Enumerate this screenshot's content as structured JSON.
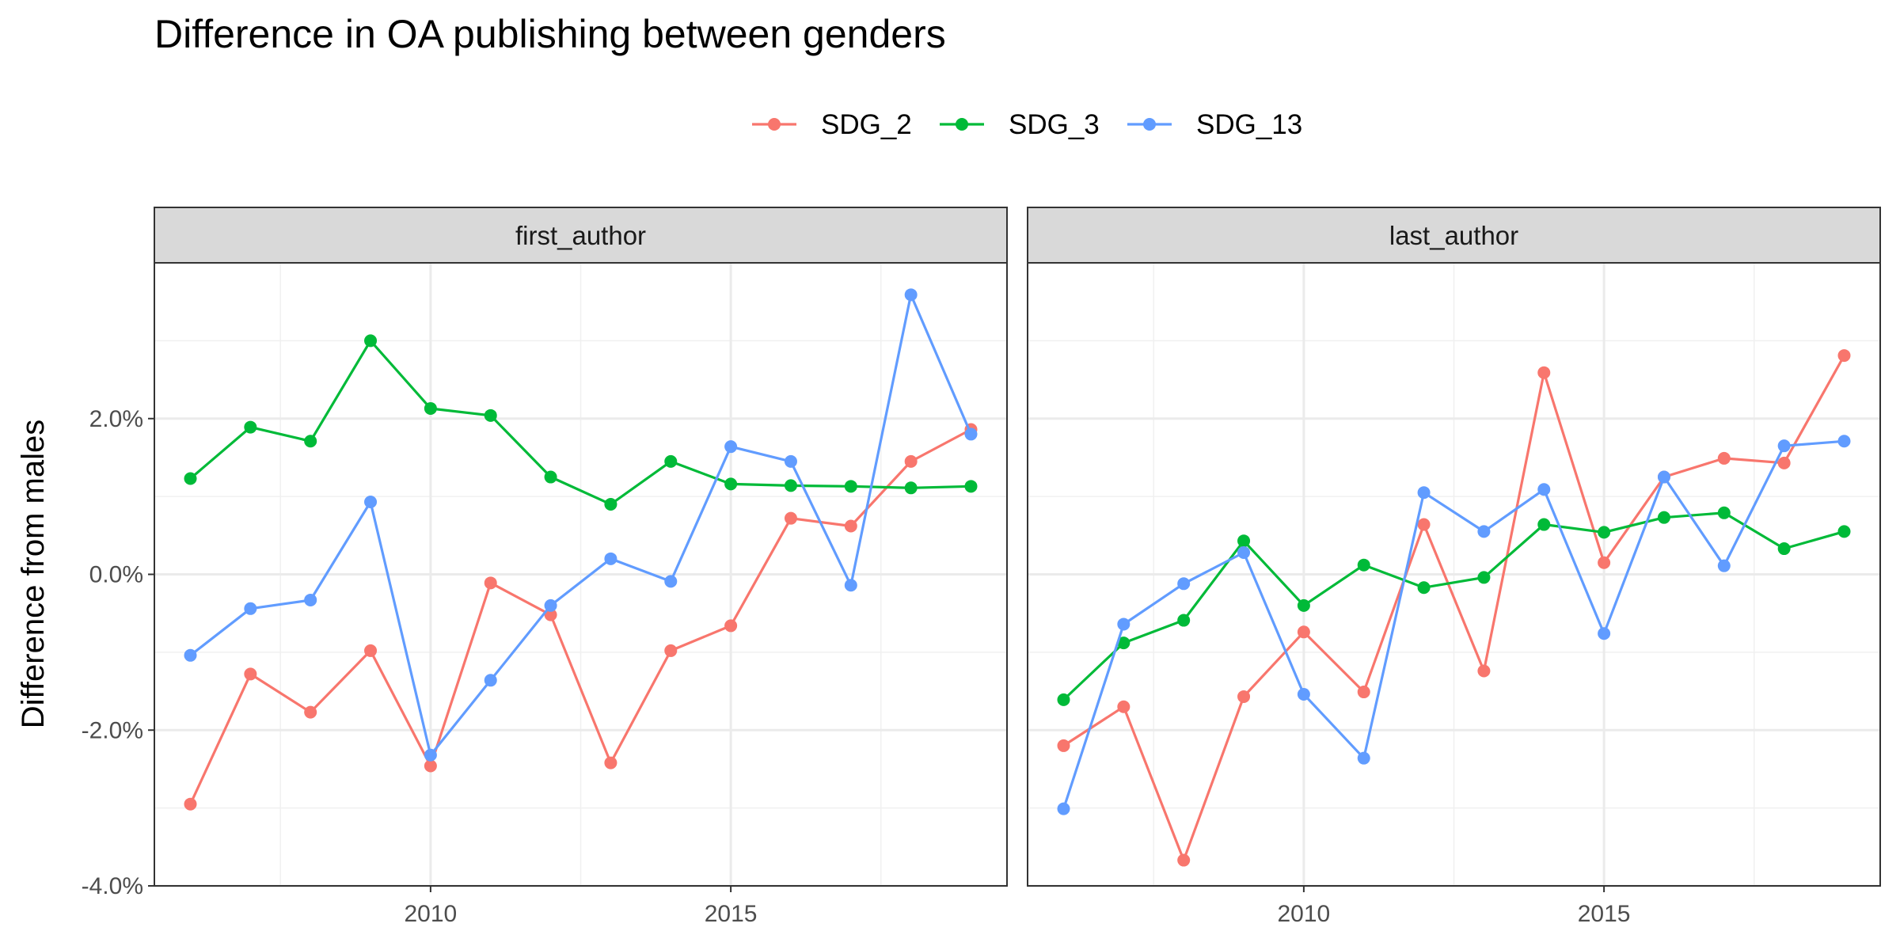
{
  "chart_data": {
    "type": "line",
    "title": "Difference in OA publishing between genders",
    "ylabel": "Difference from males",
    "xlabel": "",
    "ylim": [
      -4.0,
      4.0
    ],
    "y_tick_labels": [
      "-4.0%",
      "-2.0%",
      "0.0%",
      "2.0%"
    ],
    "x_tick_labels": [
      "2010",
      "2015"
    ],
    "legend_position": "top",
    "grid": true,
    "panels": [
      {
        "name": "first_author",
        "x": [
          2006,
          2007,
          2008,
          2009,
          2010,
          2011,
          2012,
          2013,
          2014,
          2015,
          2016,
          2017,
          2018,
          2019
        ],
        "series": [
          {
            "name": "SDG_2",
            "color": "#F8766D",
            "values": [
              -2.95,
              -1.28,
              -1.77,
              -0.98,
              -2.46,
              -0.11,
              -0.52,
              -2.42,
              -0.98,
              -0.66,
              0.72,
              0.62,
              1.45,
              1.86
            ]
          },
          {
            "name": "SDG_3",
            "color": "#00BA38",
            "values": [
              1.23,
              1.89,
              1.71,
              3.0,
              2.13,
              2.04,
              1.25,
              0.9,
              1.45,
              1.16,
              1.14,
              1.13,
              1.11,
              1.13
            ]
          },
          {
            "name": "SDG_13",
            "color": "#619CFF",
            "values": [
              -1.04,
              -0.44,
              -0.33,
              0.93,
              -2.32,
              -1.36,
              -0.4,
              0.2,
              -0.09,
              1.64,
              1.45,
              -0.14,
              3.59,
              1.8
            ]
          }
        ]
      },
      {
        "name": "last_author",
        "x": [
          2006,
          2007,
          2008,
          2009,
          2010,
          2011,
          2012,
          2013,
          2014,
          2015,
          2016,
          2017,
          2018,
          2019
        ],
        "series": [
          {
            "name": "SDG_2",
            "color": "#F8766D",
            "values": [
              -2.2,
              -1.7,
              -3.67,
              -1.57,
              -0.74,
              -1.51,
              0.64,
              -1.24,
              2.59,
              0.15,
              1.25,
              1.49,
              1.43,
              2.81
            ]
          },
          {
            "name": "SDG_3",
            "color": "#00BA38",
            "values": [
              -1.61,
              -0.88,
              -0.59,
              0.43,
              -0.4,
              0.12,
              -0.17,
              -0.04,
              0.64,
              0.54,
              0.73,
              0.79,
              0.33,
              0.55
            ]
          },
          {
            "name": "SDG_13",
            "color": "#619CFF",
            "values": [
              -3.01,
              -0.64,
              -0.12,
              0.28,
              -1.54,
              -2.36,
              1.05,
              0.55,
              1.09,
              -0.76,
              1.25,
              0.11,
              1.65,
              1.71
            ]
          }
        ]
      }
    ]
  }
}
